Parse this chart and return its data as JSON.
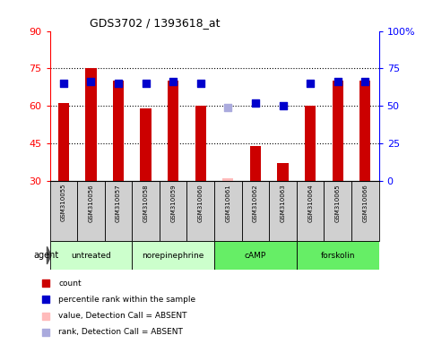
{
  "title": "GDS3702 / 1393618_at",
  "samples": [
    "GSM310055",
    "GSM310056",
    "GSM310057",
    "GSM310058",
    "GSM310059",
    "GSM310060",
    "GSM310061",
    "GSM310062",
    "GSM310063",
    "GSM310064",
    "GSM310065",
    "GSM310066"
  ],
  "bar_values": [
    61,
    75,
    70,
    59,
    70,
    60,
    31,
    44,
    37,
    60,
    70,
    70
  ],
  "bar_absent": [
    false,
    false,
    false,
    false,
    false,
    false,
    true,
    false,
    false,
    false,
    false,
    false
  ],
  "bar_color": "#cc0000",
  "bar_absent_color": "#ffbbbb",
  "percentile_values": [
    65,
    66,
    65,
    65,
    66,
    65,
    49,
    52,
    50,
    65,
    66,
    66
  ],
  "percentile_absent": [
    false,
    false,
    false,
    false,
    false,
    false,
    true,
    false,
    false,
    false,
    false,
    false
  ],
  "percentile_color": "#0000cc",
  "percentile_absent_color": "#aaaadd",
  "ylim_left": [
    30,
    90
  ],
  "ylim_right": [
    0,
    100
  ],
  "yticks_left": [
    30,
    45,
    60,
    75,
    90
  ],
  "yticks_right": [
    0,
    25,
    50,
    75,
    100
  ],
  "ytick_labels_right": [
    "0",
    "25",
    "50",
    "75",
    "100%"
  ],
  "hlines": [
    45,
    60,
    75
  ],
  "groups_def": [
    {
      "label": "untreated",
      "start": 0,
      "end": 2,
      "color": "#ccffcc"
    },
    {
      "label": "norepinephrine",
      "start": 3,
      "end": 5,
      "color": "#ccffcc"
    },
    {
      "label": "cAMP",
      "start": 6,
      "end": 8,
      "color": "#66ee66"
    },
    {
      "label": "forskolin",
      "start": 9,
      "end": 11,
      "color": "#66ee66"
    }
  ],
  "agent_label": "agent",
  "legend_items": [
    {
      "label": "count",
      "color": "#cc0000"
    },
    {
      "label": "percentile rank within the sample",
      "color": "#0000cc"
    },
    {
      "label": "value, Detection Call = ABSENT",
      "color": "#ffbbbb"
    },
    {
      "label": "rank, Detection Call = ABSENT",
      "color": "#aaaadd"
    }
  ],
  "bar_width": 0.4,
  "dot_size": 28,
  "sample_box_color": "#d0d0d0",
  "plot_bg_color": "#ffffff"
}
